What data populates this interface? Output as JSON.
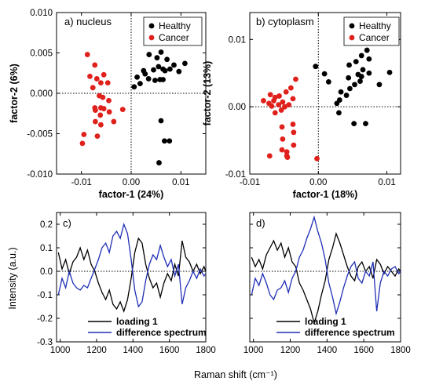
{
  "figure": {
    "shared_xlabel": "Raman shift (cm⁻¹)",
    "shared_ylabel": "Intensity (a.u.)"
  },
  "chart_data": [
    {
      "type": "scatter",
      "panel_label": "a) nucleus",
      "xlabel": "factor-1 (24%)",
      "ylabel": "factor-2 (6%)",
      "xlim": [
        -0.015,
        0.015
      ],
      "ylim": [
        -0.01,
        0.01
      ],
      "xticks": [
        "-0.01",
        "0.00",
        "0.01"
      ],
      "yticks": [
        "-0.010",
        "-0.005",
        "0.000",
        "0.005",
        "0.010"
      ],
      "legend_position": "top-right",
      "series": [
        {
          "name": "Healthy",
          "color": "#000000",
          "points": [
            [
              0.006,
              0.0051
            ],
            [
              0.0036,
              0.0048
            ],
            [
              0.0052,
              0.0044
            ],
            [
              0.0072,
              0.0042
            ],
            [
              0.0108,
              0.0037
            ],
            [
              0.0086,
              0.0035
            ],
            [
              0.0055,
              0.0033
            ],
            [
              0.0064,
              0.003
            ],
            [
              0.0078,
              0.003
            ],
            [
              0.0045,
              0.0029
            ],
            [
              0.0025,
              0.0028
            ],
            [
              0.0068,
              0.0028
            ],
            [
              0.0096,
              0.0027
            ],
            [
              0.0028,
              0.0024
            ],
            [
              0.0012,
              0.002
            ],
            [
              0.0035,
              0.0018
            ],
            [
              0.0058,
              0.0017
            ],
            [
              0.0064,
              0.0017
            ],
            [
              0.0048,
              0.0016
            ],
            [
              0.0018,
              0.0012
            ],
            [
              0.0006,
              0.0008
            ],
            [
              0.006,
              -0.0034
            ],
            [
              0.0067,
              -0.0059
            ],
            [
              0.0077,
              -0.0059
            ],
            [
              0.0056,
              -0.0086
            ]
          ]
        },
        {
          "name": "Cancer",
          "color": "#e0201b",
          "points": [
            [
              -0.0088,
              0.0048
            ],
            [
              -0.0073,
              0.0035
            ],
            [
              -0.0055,
              0.0023
            ],
            [
              -0.0083,
              0.0021
            ],
            [
              -0.0069,
              0.0018
            ],
            [
              -0.0047,
              0.0013
            ],
            [
              -0.0061,
              0.0013
            ],
            [
              -0.0077,
              0.0007
            ],
            [
              -0.0064,
              -0.0003
            ],
            [
              -0.0057,
              -0.0005
            ],
            [
              -0.0045,
              -0.0009
            ],
            [
              -0.0073,
              -0.0018
            ],
            [
              -0.0061,
              -0.0018
            ],
            [
              -0.0055,
              -0.0019
            ],
            [
              -0.0072,
              -0.0021
            ],
            [
              -0.0044,
              -0.0023
            ],
            [
              -0.0017,
              -0.002
            ],
            [
              -0.0062,
              -0.0027
            ],
            [
              -0.0072,
              -0.0035
            ],
            [
              -0.0035,
              -0.0035
            ],
            [
              -0.0061,
              -0.0039
            ],
            [
              -0.0095,
              -0.0051
            ],
            [
              -0.0068,
              -0.0053
            ],
            [
              -0.0098,
              -0.0062
            ]
          ]
        }
      ]
    },
    {
      "type": "scatter",
      "panel_label": "b) cytoplasm",
      "xlabel": "factor-1 (18%)",
      "ylabel": "factor-2 (13%)",
      "xlim": [
        -0.01,
        0.012
      ],
      "ylim": [
        -0.01,
        0.014
      ],
      "xticks": [
        "-0.01",
        "0.00",
        "0.01"
      ],
      "yticks": [
        "-0.01",
        "0.00",
        "0.01"
      ],
      "legend_position": "top-right",
      "series": [
        {
          "name": "Healthy",
          "color": "#000000",
          "points": [
            [
              0.0071,
              0.0084
            ],
            [
              0.0063,
              0.0076
            ],
            [
              0.0074,
              0.0071
            ],
            [
              0.0055,
              0.0067
            ],
            [
              0.0045,
              0.0062
            ],
            [
              -0.0004,
              0.006
            ],
            [
              0.0065,
              0.0055
            ],
            [
              0.0104,
              0.0051
            ],
            [
              0.0074,
              0.005
            ],
            [
              0.0058,
              0.0048
            ],
            [
              0.0009,
              0.0049
            ],
            [
              0.0063,
              0.0045
            ],
            [
              0.0044,
              0.0043
            ],
            [
              0.0061,
              0.0038
            ],
            [
              0.0015,
              0.0037
            ],
            [
              0.0089,
              0.0033
            ],
            [
              0.0053,
              0.0033
            ],
            [
              0.0046,
              0.0027
            ],
            [
              0.0033,
              0.0022
            ],
            [
              0.0041,
              0.0017
            ],
            [
              0.0031,
              0.001
            ],
            [
              0.0027,
              0.0005
            ],
            [
              0.003,
              -0.0009
            ],
            [
              0.0052,
              -0.0025
            ],
            [
              0.0069,
              -0.0025
            ]
          ]
        },
        {
          "name": "Cancer",
          "color": "#e0201b",
          "points": [
            [
              -0.0033,
              0.0041
            ],
            [
              -0.004,
              0.0028
            ],
            [
              -0.0047,
              0.0022
            ],
            [
              -0.007,
              0.0018
            ],
            [
              -0.0057,
              0.0016
            ],
            [
              -0.0063,
              0.0014
            ],
            [
              -0.0037,
              0.0012
            ],
            [
              -0.0065,
              0.0009
            ],
            [
              -0.008,
              0.0009
            ],
            [
              -0.0052,
              0.0007
            ],
            [
              -0.0072,
              0.0005
            ],
            [
              -0.0058,
              0.0003
            ],
            [
              -0.0043,
              0.0003
            ],
            [
              -0.0068,
              0.0001
            ],
            [
              -0.0049,
              0.0
            ],
            [
              -0.0054,
              -0.0005
            ],
            [
              -0.0063,
              -0.0009
            ],
            [
              -0.0037,
              -0.0026
            ],
            [
              -0.0053,
              -0.003
            ],
            [
              -0.0036,
              -0.0038
            ],
            [
              -0.0052,
              -0.0048
            ],
            [
              -0.0036,
              -0.0057
            ],
            [
              -0.0053,
              -0.0064
            ],
            [
              -0.0046,
              -0.0067
            ],
            [
              -0.0071,
              -0.0073
            ],
            [
              -0.0046,
              -0.0073
            ],
            [
              -0.0045,
              -0.0075
            ],
            [
              -0.0002,
              -0.0077
            ]
          ]
        }
      ]
    },
    {
      "type": "line",
      "panel_label": "c)",
      "xlim": [
        980,
        1800
      ],
      "ylim": [
        -0.3,
        0.25
      ],
      "xticks": [
        "1000",
        "1200",
        "1400",
        "1600",
        "1800"
      ],
      "yticks": [
        "-0.3",
        "-0.2",
        "-0.1",
        "0.0",
        "0.1",
        "0.2"
      ],
      "legend_position": "bottom-center",
      "series": [
        {
          "name": "loading 1",
          "color": "#000000",
          "x": [
            990,
            1010,
            1030,
            1050,
            1070,
            1090,
            1110,
            1130,
            1150,
            1170,
            1190,
            1210,
            1230,
            1250,
            1270,
            1290,
            1310,
            1330,
            1350,
            1370,
            1390,
            1410,
            1430,
            1450,
            1470,
            1490,
            1510,
            1530,
            1550,
            1570,
            1590,
            1610,
            1630,
            1650,
            1670,
            1690,
            1710,
            1730,
            1750,
            1770,
            1790,
            1800
          ],
          "values": [
            0.08,
            0.01,
            0.05,
            -0.01,
            0.04,
            0.06,
            0.1,
            0.05,
            0.09,
            0.03,
            0.0,
            -0.05,
            -0.09,
            -0.12,
            -0.08,
            -0.14,
            -0.16,
            -0.13,
            -0.17,
            -0.12,
            -0.03,
            0.08,
            0.14,
            0.12,
            0.03,
            -0.03,
            -0.07,
            -0.05,
            -0.11,
            -0.05,
            -0.01,
            -0.04,
            0.03,
            -0.02,
            0.13,
            0.06,
            0.04,
            0.0,
            0.03,
            -0.01,
            0.02,
            0.0
          ]
        },
        {
          "name": "difference spectrum",
          "color": "#1f2fb4",
          "x": [
            990,
            1010,
            1030,
            1050,
            1070,
            1090,
            1110,
            1130,
            1150,
            1170,
            1190,
            1210,
            1230,
            1250,
            1270,
            1290,
            1310,
            1330,
            1350,
            1370,
            1390,
            1410,
            1430,
            1450,
            1470,
            1490,
            1510,
            1530,
            1550,
            1570,
            1590,
            1610,
            1630,
            1650,
            1670,
            1690,
            1710,
            1730,
            1750,
            1770,
            1790,
            1800
          ],
          "values": [
            -0.1,
            -0.03,
            -0.07,
            0.0,
            -0.05,
            -0.07,
            -0.08,
            -0.06,
            -0.07,
            -0.03,
            0.01,
            0.05,
            0.1,
            0.12,
            0.08,
            0.15,
            0.17,
            0.14,
            0.2,
            0.16,
            0.05,
            -0.08,
            -0.15,
            -0.13,
            -0.04,
            0.03,
            0.07,
            0.05,
            0.11,
            0.06,
            0.02,
            0.05,
            -0.02,
            0.03,
            -0.14,
            -0.07,
            -0.04,
            0.0,
            -0.03,
            0.01,
            -0.02,
            -0.01
          ]
        }
      ]
    },
    {
      "type": "line",
      "panel_label": "d)",
      "xlim": [
        980,
        1800
      ],
      "ylim": [
        -0.3,
        0.25
      ],
      "xticks": [
        "1000",
        "1200",
        "1400",
        "1600",
        "1800"
      ],
      "yticks": [],
      "legend_position": "bottom-center",
      "series": [
        {
          "name": "loading 1",
          "color": "#000000",
          "x": [
            990,
            1010,
            1030,
            1050,
            1070,
            1090,
            1110,
            1130,
            1150,
            1170,
            1190,
            1210,
            1230,
            1250,
            1270,
            1290,
            1310,
            1330,
            1350,
            1370,
            1390,
            1410,
            1430,
            1450,
            1470,
            1490,
            1510,
            1530,
            1550,
            1570,
            1590,
            1610,
            1630,
            1650,
            1670,
            1690,
            1710,
            1730,
            1750,
            1770,
            1790,
            1800
          ],
          "values": [
            0.06,
            0.02,
            0.05,
            0.01,
            0.07,
            0.1,
            0.13,
            0.09,
            0.12,
            0.06,
            0.1,
            0.04,
            0.02,
            -0.05,
            -0.08,
            -0.12,
            -0.16,
            -0.22,
            -0.17,
            -0.1,
            -0.04,
            0.05,
            0.1,
            0.16,
            0.12,
            0.07,
            0.02,
            -0.02,
            -0.04,
            0.02,
            0.04,
            0.0,
            0.02,
            -0.03,
            0.05,
            0.03,
            -0.01,
            0.02,
            0.0,
            -0.02,
            0.01,
            0.0
          ]
        },
        {
          "name": "difference spectrum",
          "color": "#1f2fb4",
          "x": [
            990,
            1010,
            1030,
            1050,
            1070,
            1090,
            1110,
            1130,
            1150,
            1170,
            1190,
            1210,
            1230,
            1250,
            1270,
            1290,
            1310,
            1330,
            1350,
            1370,
            1390,
            1410,
            1430,
            1450,
            1470,
            1490,
            1510,
            1530,
            1550,
            1570,
            1590,
            1610,
            1630,
            1650,
            1670,
            1690,
            1710,
            1730,
            1750,
            1770,
            1790,
            1800
          ],
          "values": [
            -0.1,
            -0.03,
            -0.06,
            -0.01,
            -0.05,
            -0.1,
            -0.12,
            -0.08,
            -0.07,
            -0.04,
            -0.09,
            -0.03,
            0.0,
            0.06,
            0.09,
            0.14,
            0.18,
            0.23,
            0.17,
            0.12,
            0.05,
            -0.05,
            -0.11,
            -0.18,
            -0.13,
            -0.07,
            -0.02,
            0.02,
            0.04,
            -0.03,
            -0.05,
            0.0,
            -0.02,
            0.04,
            -0.17,
            -0.05,
            0.0,
            -0.02,
            0.01,
            0.02,
            -0.01,
            0.0
          ]
        }
      ]
    }
  ]
}
